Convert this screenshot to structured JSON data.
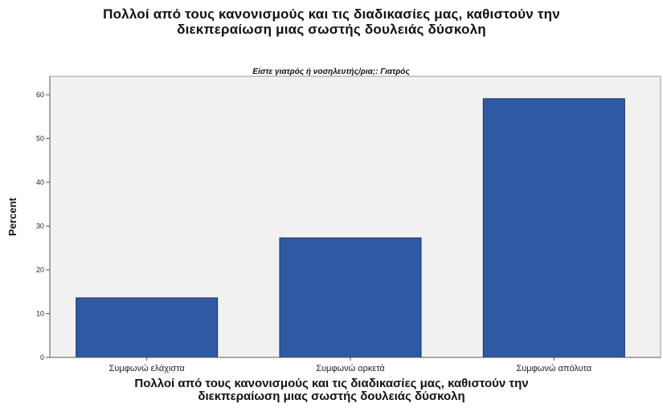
{
  "header": {
    "title_line1": "Πολλοί από τους κανονισμούς και τις διαδικασίες μας, καθιστούν την",
    "title_line2": "διεκπεραίωση μιας σωστής δουλειάς δύσκολη"
  },
  "chart_data": {
    "type": "bar",
    "panel_title": "Είστε γιατρός ή νοσηλευτής/ρια;: Γιατρός",
    "categories": [
      "Συμφωνώ ελάχιστα",
      "Συμφωνώ αρκετά",
      "Συμφωνώ απόλυτα"
    ],
    "values": [
      13.6,
      27.3,
      59.1
    ],
    "ylabel": "Percent",
    "xlabel_line1": "Πολλοί από τους κανονισμούς και τις διαδικασίες μας, καθιστούν την",
    "xlabel_line2": "διεκπεραίωση μιας σωστής δουλειάς δύσκολη",
    "ylim": [
      0,
      60
    ],
    "yticks": [
      0,
      10,
      20,
      30,
      40,
      50,
      60
    ],
    "bar_color": "#2f5aa3",
    "bar_edge_color": "#1c2f59",
    "grid": false,
    "legend": "none"
  }
}
